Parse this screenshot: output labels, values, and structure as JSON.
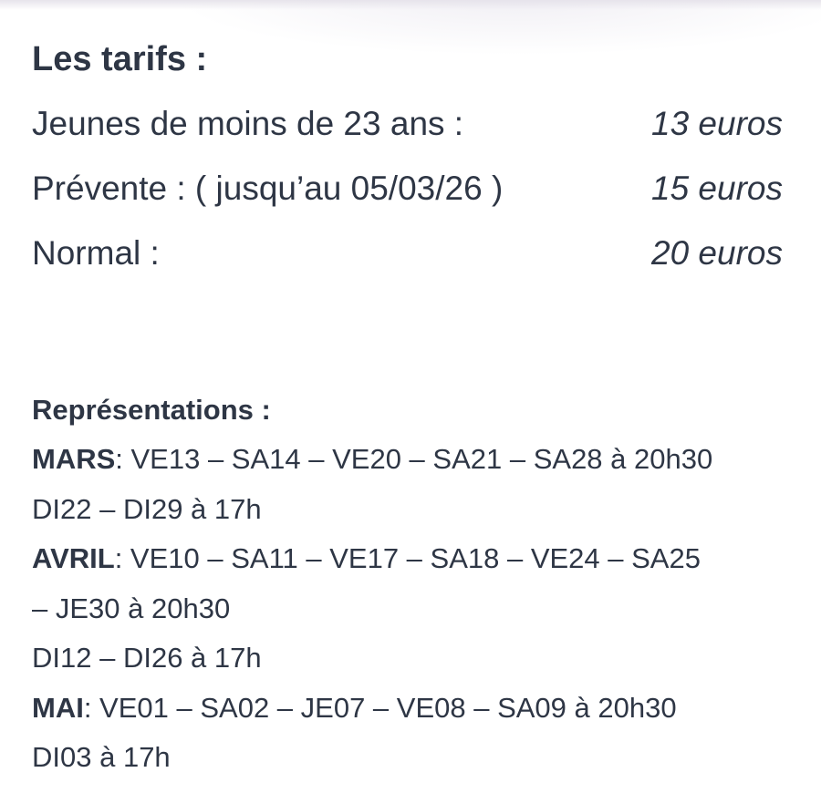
{
  "colors": {
    "text": "#2e3645",
    "background": "#ffffff",
    "top_shadow": "#e7e4eb"
  },
  "tariffs": {
    "heading": "Les tarifs :",
    "items": [
      {
        "label": "Jeunes de moins de 23 ans :",
        "price": "13 euros"
      },
      {
        "label": "Prévente : ( jusqu’au 05/03/26 )",
        "price": "15 euros"
      },
      {
        "label": "Normal :",
        "price": "20 euros"
      }
    ]
  },
  "representations": {
    "heading": "Représentations :",
    "lines": [
      {
        "month": "MARS",
        "text": ": VE13 – SA14 – VE20 – SA21 – SA28 à 20h30"
      },
      {
        "month": "",
        "text": "DI22 – DI29 à 17h"
      },
      {
        "month": "AVRIL",
        "text": ": VE10 – SA11 – VE17 – SA18 – VE24 – SA25"
      },
      {
        "month": "",
        "text": "– JE30 à 20h30"
      },
      {
        "month": "",
        "text": "DI12 – DI26 à 17h"
      },
      {
        "month": "MAI",
        "text": ": VE01 – SA02 – JE07 – VE08 – SA09 à 20h30"
      },
      {
        "month": "",
        "text": "DI03 à 17h"
      }
    ]
  }
}
